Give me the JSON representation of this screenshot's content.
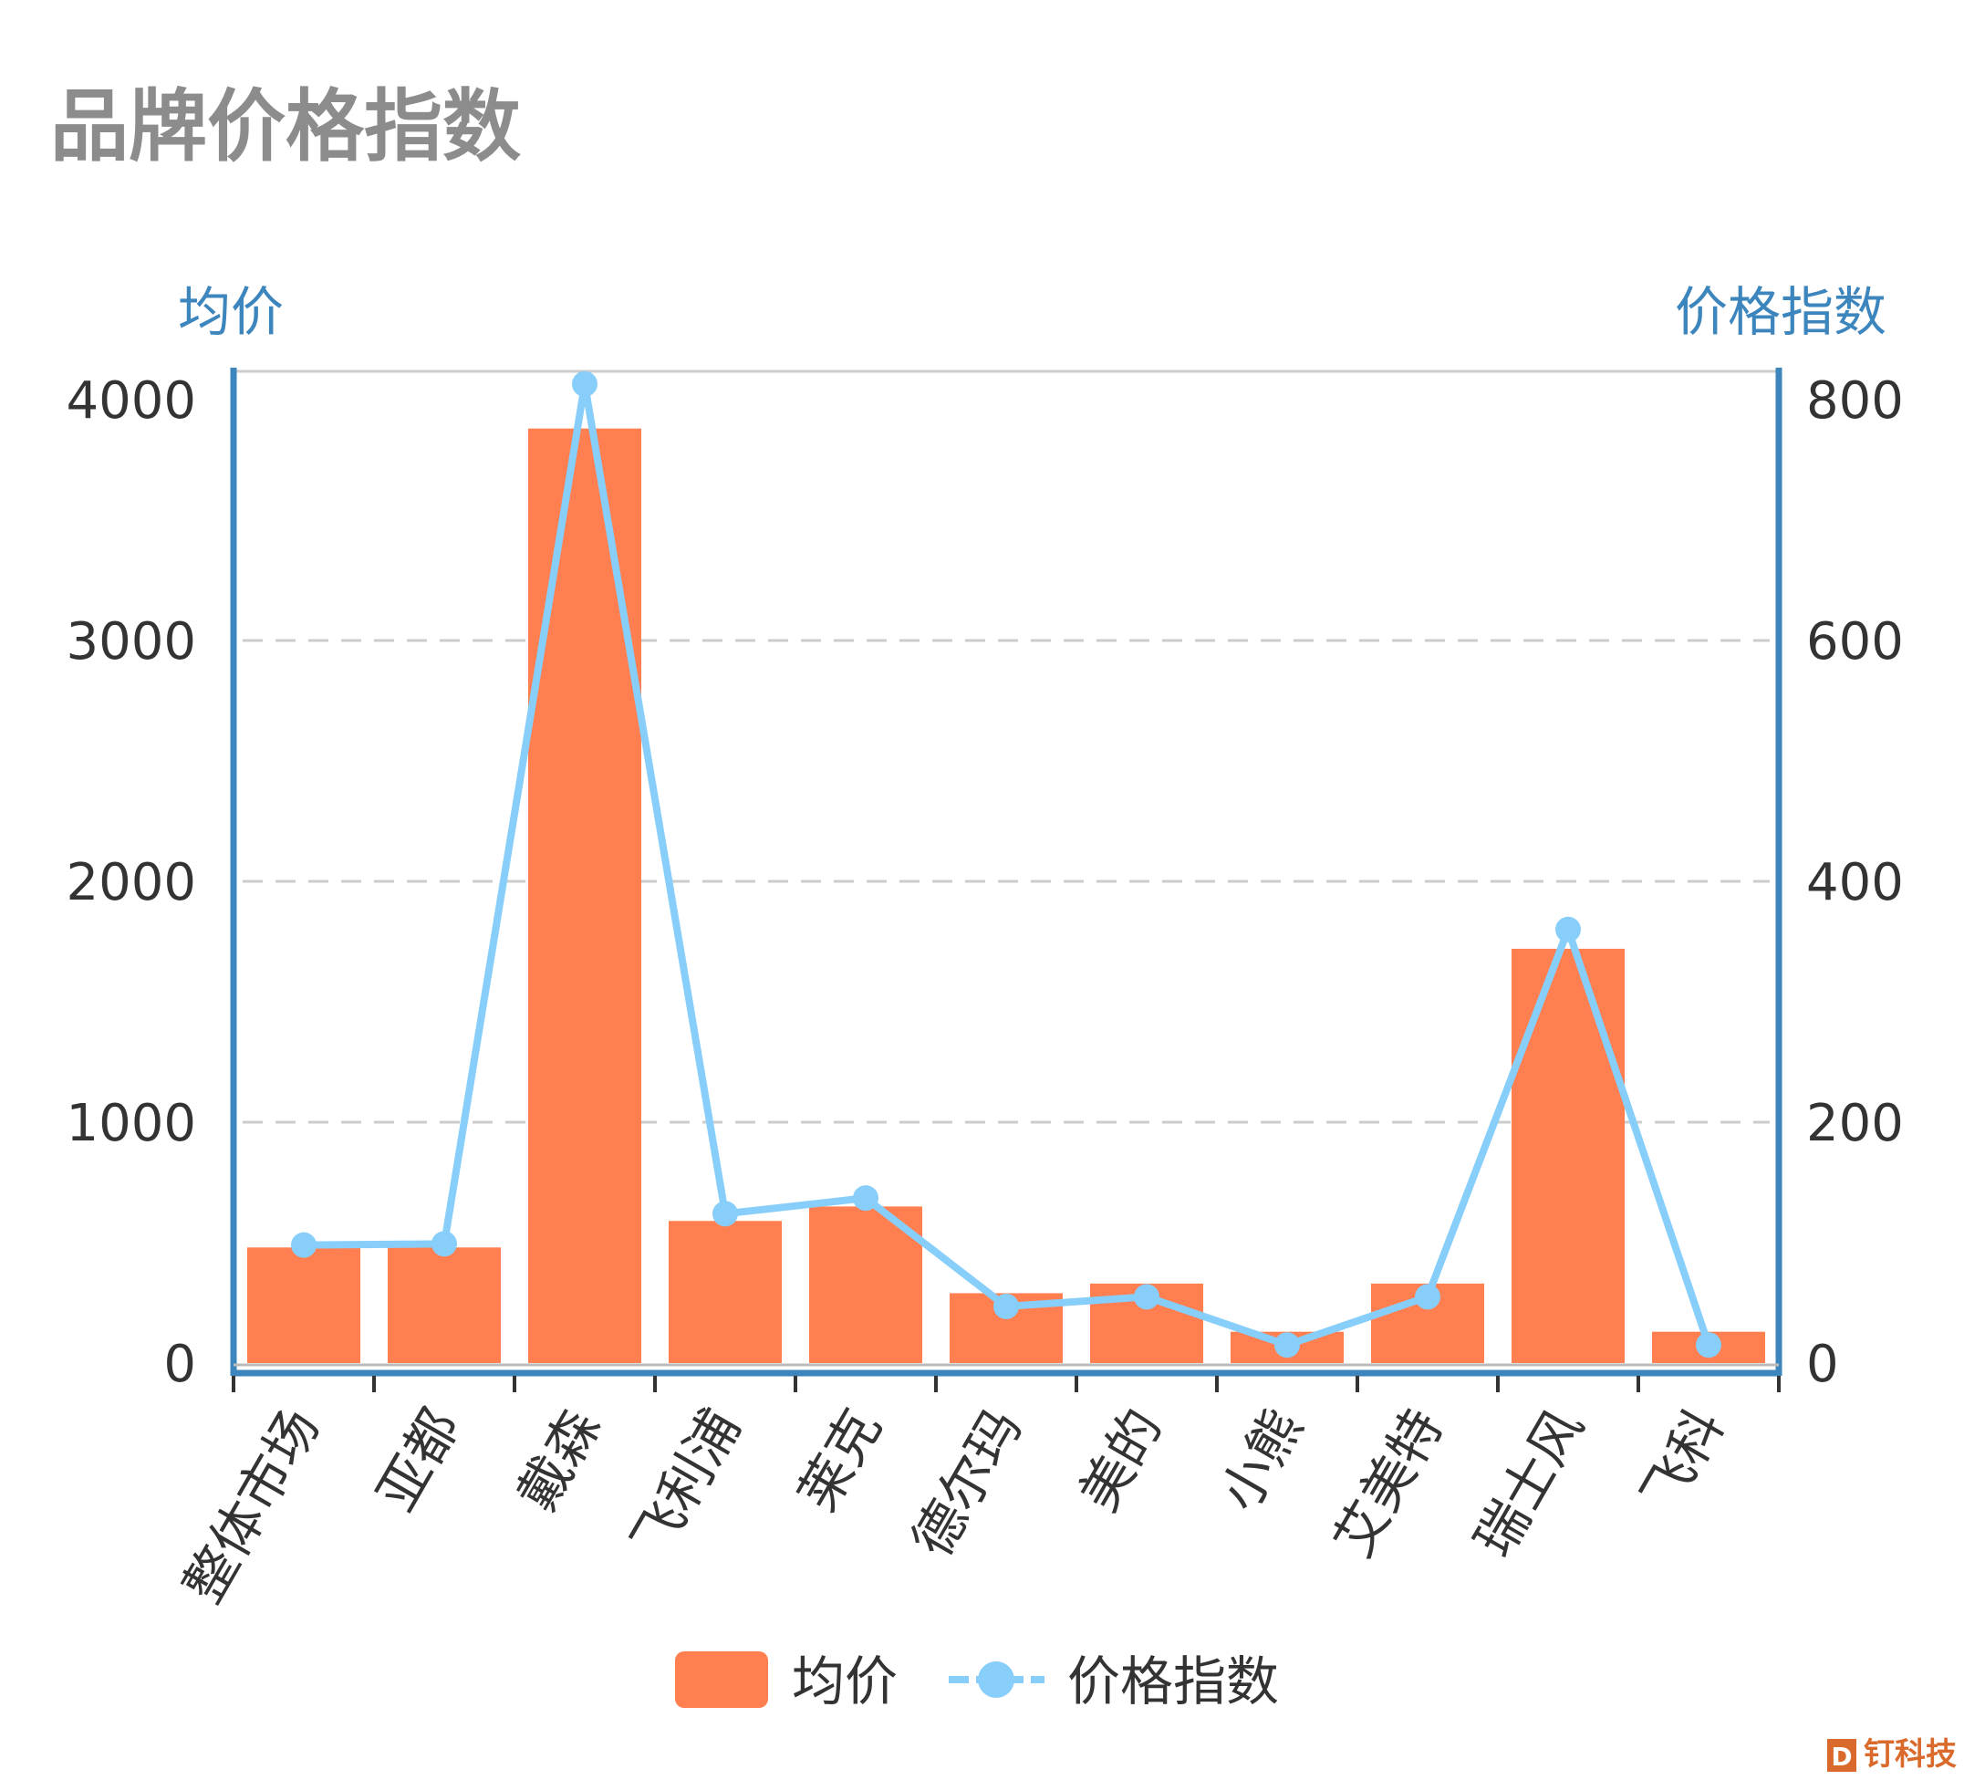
{
  "chart_data": {
    "type": "bar",
    "title": "品牌价格指数",
    "categories": [
      "整体市场",
      "亚都",
      "戴森",
      "飞利浦",
      "莱克",
      "德尔玛",
      "美的",
      "小熊",
      "艾美特",
      "瑞士风",
      "飞科"
    ],
    "series": [
      {
        "name": "均价",
        "type": "bar",
        "axis": "left",
        "values": [
          480,
          480,
          3880,
          590,
          650,
          290,
          330,
          130,
          330,
          1720,
          130
        ]
      },
      {
        "name": "价格指数",
        "type": "line",
        "axis": "right",
        "values": [
          98,
          99,
          813,
          124,
          137,
          47,
          55,
          15,
          55,
          360,
          15
        ]
      }
    ],
    "y_left": {
      "label": "均价",
      "ticks": [
        "0",
        "1000",
        "2000",
        "3000",
        "4000"
      ],
      "ylim": [
        0,
        4000
      ]
    },
    "y_right": {
      "label": "价格指数",
      "ticks": [
        "0",
        "200",
        "400",
        "600",
        "800"
      ],
      "ylim": [
        0,
        800
      ]
    },
    "grid": true,
    "legend_position": "bottom-center",
    "colors": {
      "bar": "#ff7f50",
      "line": "#87cefa",
      "axis": "#3d85bd",
      "title": "#8c8c8c"
    }
  },
  "watermark": {
    "text": "钉科技",
    "letter": "D"
  }
}
